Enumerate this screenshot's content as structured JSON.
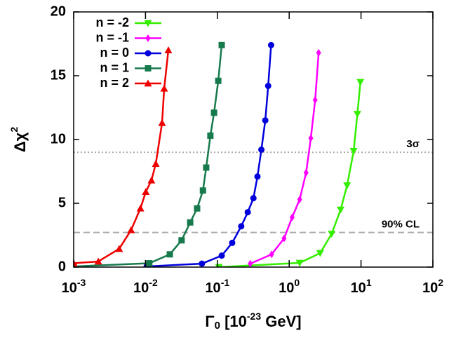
{
  "chart_data": {
    "type": "line",
    "log_x": true,
    "x_label": {
      "symbol": "Γ",
      "subscript": "0",
      "text": " [10",
      "exponent": "-23",
      "unit": " GeV]"
    },
    "y_label": {
      "text": "Δχ",
      "exponent": "2"
    },
    "xlim": [
      0.001,
      100
    ],
    "ylim": [
      0,
      20
    ],
    "xticks": [
      {
        "value": 0.001,
        "label": "10",
        "exponent": "-3"
      },
      {
        "value": 0.01,
        "label": "10",
        "exponent": "-2"
      },
      {
        "value": 0.1,
        "label": "10",
        "exponent": "-1"
      },
      {
        "value": 1,
        "label": "10",
        "exponent": "0"
      },
      {
        "value": 10,
        "label": "10",
        "exponent": "1"
      },
      {
        "value": 100,
        "label": "10",
        "exponent": "2"
      }
    ],
    "yticks": [
      0,
      5,
      10,
      15,
      20
    ],
    "legend": "top-left",
    "hlines": [
      {
        "value": 9,
        "label": "3σ",
        "style": "dotted",
        "color": "#aaaaaa"
      },
      {
        "value": 2.71,
        "label": "90% CL",
        "style": "dashed",
        "color": "#aaaaaa"
      }
    ],
    "series": [
      {
        "name": "n = -2",
        "color": "#33ee00",
        "marker": "triangle-down",
        "x": [
          0.105,
          1.4,
          2.7,
          3.9,
          5.2,
          6.4,
          7.9,
          8.9,
          9.8
        ],
        "values": [
          0,
          0.33,
          1.1,
          2.6,
          4.5,
          6.4,
          9.1,
          12,
          14.5
        ]
      },
      {
        "name": "n = -1",
        "color": "#ff00ff",
        "marker": "diamond",
        "x": [
          0.287,
          0.57,
          0.85,
          1.1,
          1.4,
          1.72,
          2.0,
          2.3,
          2.57
        ],
        "values": [
          0.27,
          1.0,
          2.25,
          3.9,
          5.3,
          7.4,
          10.1,
          13.1,
          16.8
        ]
      },
      {
        "name": "n = 0",
        "color": "#0000dd",
        "marker": "circle",
        "x": [
          0.0104,
          0.061,
          0.115,
          0.161,
          0.215,
          0.265,
          0.318,
          0.362,
          0.41,
          0.465,
          0.51,
          0.56
        ],
        "values": [
          0.05,
          0.27,
          0.9,
          1.9,
          3.2,
          4.3,
          5.4,
          7.1,
          9.2,
          11.5,
          14.2,
          17.4
        ]
      },
      {
        "name": "n = 1",
        "color": "#167a4c",
        "marker": "square",
        "x": [
          0.001,
          0.0113,
          0.0218,
          0.0318,
          0.0419,
          0.0523,
          0.063,
          0.07,
          0.08,
          0.09,
          0.103,
          0.115
        ],
        "values": [
          0.05,
          0.3,
          1.0,
          2.1,
          3.5,
          4.6,
          6.0,
          7.8,
          10.3,
          12.1,
          14.6,
          17.4
        ]
      },
      {
        "name": "n = 2",
        "color": "#ee0000",
        "marker": "triangle",
        "x": [
          0.001,
          0.0022,
          0.0043,
          0.0063,
          0.0085,
          0.0101,
          0.0121,
          0.0139,
          0.017,
          0.0182,
          0.0208
        ],
        "values": [
          0.3,
          0.44,
          1.43,
          2.9,
          4.6,
          5.9,
          6.8,
          8.1,
          11.3,
          14.0,
          17.0
        ]
      }
    ]
  }
}
